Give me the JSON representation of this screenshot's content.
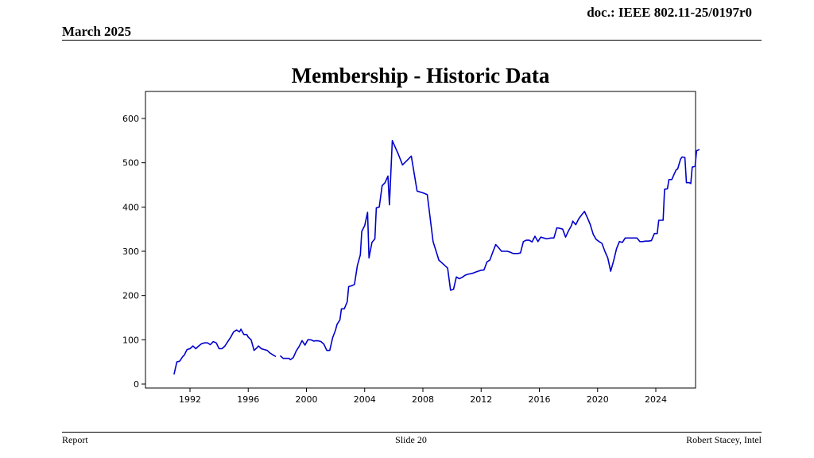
{
  "header": {
    "doc_id": "doc.: IEEE 802.11-25/0197r0",
    "date": "March 2025"
  },
  "slide": {
    "title": "Membership - Historic Data"
  },
  "footer": {
    "left": "Report",
    "center": "Slide 20",
    "right": "Robert Stacey, Intel"
  },
  "chart_data": {
    "type": "line",
    "title": "Membership - Historic Data",
    "xlabel": "",
    "ylabel": "",
    "xlim": [
      1989.2,
      2027.0
    ],
    "ylim": [
      -10,
      665
    ],
    "xticks": [
      1992,
      1996,
      2000,
      2004,
      2008,
      2012,
      2016,
      2020,
      2024
    ],
    "yticks": [
      0,
      100,
      200,
      300,
      400,
      500,
      600
    ],
    "grid": false,
    "line_color": "#0000cc",
    "series": [
      {
        "segments": [
          [
            [
              1990.9,
              22
            ],
            [
              1991.1,
              50
            ],
            [
              1991.3,
              52
            ],
            [
              1991.5,
              62
            ],
            [
              1991.6,
              65
            ],
            [
              1991.8,
              78
            ],
            [
              1992.0,
              80
            ],
            [
              1992.2,
              86
            ],
            [
              1992.4,
              80
            ],
            [
              1992.6,
              86
            ],
            [
              1992.8,
              91
            ],
            [
              1993.0,
              93
            ],
            [
              1993.2,
              93
            ],
            [
              1993.4,
              89
            ],
            [
              1993.6,
              96
            ],
            [
              1993.8,
              93
            ],
            [
              1994.0,
              80
            ],
            [
              1994.2,
              80
            ],
            [
              1994.4,
              86
            ],
            [
              1994.6,
              96
            ],
            [
              1994.8,
              106
            ],
            [
              1995.0,
              118
            ],
            [
              1995.2,
              122
            ],
            [
              1995.4,
              118
            ],
            [
              1995.5,
              124
            ],
            [
              1995.7,
              112
            ],
            [
              1995.9,
              112
            ],
            [
              1996.0,
              106
            ],
            [
              1996.2,
              100
            ],
            [
              1996.4,
              76
            ],
            [
              1996.6,
              82
            ],
            [
              1996.7,
              86
            ],
            [
              1996.9,
              80
            ],
            [
              1997.1,
              78
            ],
            [
              1997.3,
              76
            ],
            [
              1997.5,
              70
            ],
            [
              1997.7,
              66
            ],
            [
              1997.9,
              62
            ]
          ],
          [
            [
              1998.2,
              64
            ],
            [
              1998.4,
              58
            ],
            [
              1998.6,
              58
            ],
            [
              1998.8,
              58
            ],
            [
              1998.9,
              55
            ],
            [
              1999.1,
              60
            ],
            [
              1999.3,
              75
            ],
            [
              1999.5,
              85
            ],
            [
              1999.7,
              98
            ],
            [
              1999.9,
              88
            ],
            [
              2000.1,
              100
            ],
            [
              2000.3,
              100
            ],
            [
              2000.5,
              97
            ],
            [
              2000.7,
              98
            ],
            [
              2000.9,
              97
            ],
            [
              2001.0,
              96
            ],
            [
              2001.2,
              90
            ],
            [
              2001.4,
              76
            ],
            [
              2001.6,
              76
            ],
            [
              2001.8,
              105
            ],
            [
              2002.0,
              122
            ],
            [
              2002.1,
              135
            ],
            [
              2002.3,
              145
            ],
            [
              2002.4,
              170
            ],
            [
              2002.6,
              170
            ],
            [
              2002.8,
              186
            ],
            [
              2002.9,
              220
            ],
            [
              2003.1,
              222
            ],
            [
              2003.3,
              225
            ],
            [
              2003.5,
              268
            ],
            [
              2003.7,
              292
            ],
            [
              2003.8,
              345
            ],
            [
              2004.0,
              358
            ],
            [
              2004.2,
              388
            ],
            [
              2004.3,
              285
            ],
            [
              2004.5,
              320
            ],
            [
              2004.7,
              328
            ],
            [
              2004.8,
              398
            ],
            [
              2005.0,
              400
            ],
            [
              2005.2,
              448
            ],
            [
              2005.4,
              455
            ],
            [
              2005.6,
              470
            ],
            [
              2005.7,
              405
            ],
            [
              2005.9,
              550
            ],
            [
              2006.1,
              535
            ],
            [
              2006.3,
              520
            ],
            [
              2006.6,
              495
            ],
            [
              2006.9,
              505
            ],
            [
              2007.2,
              515
            ],
            [
              2007.6,
              436
            ],
            [
              2008.0,
              432
            ],
            [
              2008.3,
              428
            ],
            [
              2008.7,
              322
            ],
            [
              2009.1,
              280
            ],
            [
              2009.5,
              268
            ],
            [
              2009.7,
              262
            ],
            [
              2009.9,
              212
            ],
            [
              2010.1,
              214
            ],
            [
              2010.3,
              242
            ],
            [
              2010.5,
              238
            ],
            [
              2010.7,
              241
            ],
            [
              2010.9,
              246
            ],
            [
              2011.1,
              248
            ],
            [
              2011.4,
              250
            ],
            [
              2011.7,
              254
            ],
            [
              2012.0,
              257
            ],
            [
              2012.2,
              258
            ],
            [
              2012.4,
              276
            ],
            [
              2012.6,
              280
            ],
            [
              2012.8,
              298
            ],
            [
              2013.0,
              315
            ],
            [
              2013.2,
              308
            ],
            [
              2013.4,
              300
            ],
            [
              2013.6,
              300
            ],
            [
              2013.8,
              300
            ],
            [
              2014.0,
              298
            ],
            [
              2014.2,
              295
            ],
            [
              2014.5,
              295
            ],
            [
              2014.7,
              296
            ],
            [
              2014.9,
              322
            ],
            [
              2015.1,
              325
            ],
            [
              2015.3,
              325
            ],
            [
              2015.5,
              321
            ],
            [
              2015.7,
              334
            ],
            [
              2015.9,
              322
            ],
            [
              2016.1,
              332
            ],
            [
              2016.3,
              330
            ],
            [
              2016.5,
              328
            ],
            [
              2016.8,
              330
            ],
            [
              2017.0,
              330
            ],
            [
              2017.2,
              353
            ],
            [
              2017.4,
              352
            ],
            [
              2017.6,
              350
            ],
            [
              2017.8,
              332
            ],
            [
              2018.0,
              346
            ],
            [
              2018.2,
              358
            ],
            [
              2018.3,
              368
            ],
            [
              2018.5,
              360
            ],
            [
              2018.7,
              373
            ],
            [
              2018.9,
              382
            ],
            [
              2019.1,
              390
            ],
            [
              2019.3,
              376
            ],
            [
              2019.5,
              360
            ],
            [
              2019.7,
              338
            ],
            [
              2019.9,
              327
            ],
            [
              2020.1,
              322
            ],
            [
              2020.3,
              318
            ],
            [
              2020.5,
              300
            ],
            [
              2020.7,
              285
            ],
            [
              2020.9,
              255
            ],
            [
              2021.1,
              278
            ],
            [
              2021.3,
              306
            ],
            [
              2021.5,
              322
            ],
            [
              2021.7,
              320
            ],
            [
              2021.9,
              330
            ],
            [
              2022.1,
              330
            ],
            [
              2022.3,
              330
            ],
            [
              2022.5,
              330
            ],
            [
              2022.7,
              330
            ],
            [
              2022.9,
              322
            ],
            [
              2023.1,
              322
            ],
            [
              2023.3,
              323
            ],
            [
              2023.5,
              323
            ],
            [
              2023.7,
              324
            ],
            [
              2023.9,
              340
            ],
            [
              2024.1,
              340
            ],
            [
              2024.2,
              370
            ],
            [
              2024.4,
              370
            ],
            [
              2024.5,
              370
            ],
            [
              2024.6,
              440
            ],
            [
              2024.8,
              441
            ],
            [
              2024.9,
              462
            ],
            [
              2025.1,
              462
            ],
            [
              2025.2,
              470
            ],
            [
              2025.4,
              484
            ],
            [
              2025.5,
              486
            ],
            [
              2025.7,
              508
            ],
            [
              2025.8,
              513
            ],
            [
              2026.0,
              512
            ],
            [
              2026.1,
              455
            ],
            [
              2026.3,
              455
            ],
            [
              2026.4,
              453
            ],
            [
              2026.5,
              490
            ],
            [
              2026.7,
              492
            ],
            [
              2026.8,
              527
            ],
            [
              2027.0,
              530
            ]
          ]
        ]
      }
    ]
  }
}
